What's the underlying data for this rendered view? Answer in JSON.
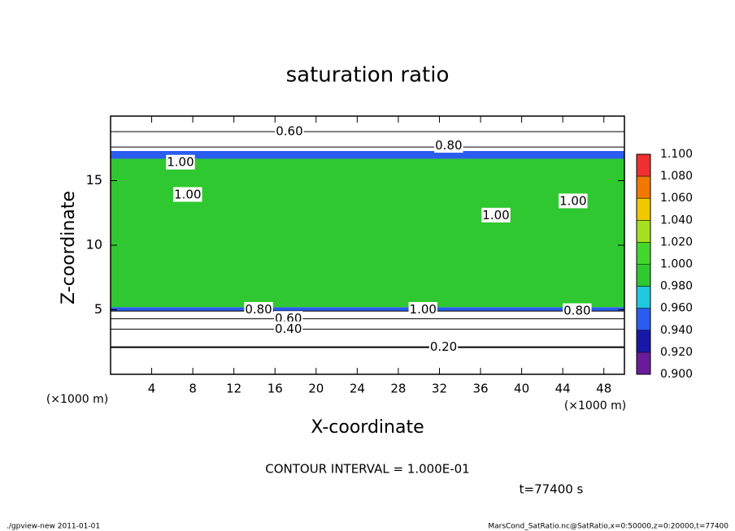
{
  "chart_data": {
    "type": "contour",
    "title": "saturation ratio",
    "xlabel": "X-coordinate",
    "ylabel": "Z-coordinate",
    "x_unit": "(×1000 m)",
    "xlim": [
      0,
      50
    ],
    "ylim": [
      0,
      20
    ],
    "xticks": [
      4,
      8,
      12,
      16,
      20,
      24,
      28,
      32,
      36,
      40,
      44,
      48
    ],
    "yticks": [
      5,
      10,
      15
    ],
    "colorbar": {
      "levels": [
        {
          "value": 0.9,
          "label": "0.900"
        },
        {
          "value": 0.92,
          "label": "0.920"
        },
        {
          "value": 0.94,
          "label": "0.940"
        },
        {
          "value": 0.96,
          "label": "0.960"
        },
        {
          "value": 0.98,
          "label": "0.980"
        },
        {
          "value": 1,
          "label": "1.000"
        },
        {
          "value": 1.02,
          "label": "1.020"
        },
        {
          "value": 1.04,
          "label": "1.040"
        },
        {
          "value": 1.06,
          "label": "1.060"
        },
        {
          "value": 1.08,
          "label": "1.080"
        },
        {
          "value": 1.1,
          "label": "1.100"
        }
      ],
      "colors": [
        "#6a1b9a",
        "#1818a8",
        "#2a5cf0",
        "#20c8e0",
        "#30c830",
        "#44d62c",
        "#a8e020",
        "#f0c800",
        "#f07800",
        "#f03030"
      ]
    },
    "field_layers": [
      {
        "z": [
          0,
          4.9
        ],
        "value": 0.5
      },
      {
        "z": [
          4.9,
          5.2
        ],
        "value": 0.95
      },
      {
        "z": [
          5.2,
          16.7
        ],
        "value": 0.99
      },
      {
        "z": [
          16.7,
          17.3
        ],
        "value": 0.95
      },
      {
        "z": [
          17.3,
          20
        ],
        "value": 0.7
      }
    ],
    "contour_lines": [
      {
        "level": 0.2,
        "z": 2.1
      },
      {
        "level": 0.4,
        "z": 3.5
      },
      {
        "level": 0.6,
        "z": 4.3
      },
      {
        "level": 0.8,
        "z": 4.9
      },
      {
        "level": 0.8,
        "z": 17.6
      },
      {
        "level": 0.6,
        "z": 18.8
      }
    ],
    "contour_labels": [
      {
        "label": "0.60",
        "x": 17.4,
        "z": 18.8
      },
      {
        "label": "0.80",
        "x": 32.9,
        "z": 17.7
      },
      {
        "label": "1.00",
        "x": 6.8,
        "z": 16.4
      },
      {
        "label": "1.00",
        "x": 7.5,
        "z": 13.9
      },
      {
        "label": "1.00",
        "x": 37.5,
        "z": 12.3
      },
      {
        "label": "1.00",
        "x": 45,
        "z": 13.4
      },
      {
        "label": "0.80",
        "x": 14.4,
        "z": 5.0
      },
      {
        "label": "0.60",
        "x": 17.3,
        "z": 4.3
      },
      {
        "label": "0.40",
        "x": 17.3,
        "z": 3.5
      },
      {
        "label": "0.20",
        "x": 32.4,
        "z": 2.1
      },
      {
        "label": "1.00",
        "x": 30.4,
        "z": 5.0
      },
      {
        "label": "0.80",
        "x": 45.4,
        "z": 4.9
      }
    ],
    "annotations": [
      "CONTOUR INTERVAL = 1.000E-01",
      "t=77400 s"
    ],
    "footer": [
      "./gpview-new  2011-01-01",
      "MarsCond_SatRatio.nc@SatRatio,x=0:50000,z=0:20000,t=77400"
    ]
  }
}
